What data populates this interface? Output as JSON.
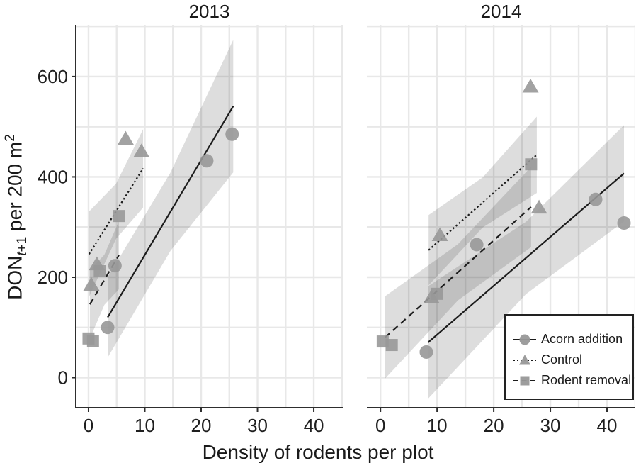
{
  "chart_data": {
    "type": "scatter",
    "xlabel": "Density of rodents per plot",
    "ylabel": {
      "prefix": "DON",
      "sub_italic": "t",
      "sub_rest": "+1",
      "mid": " per 200 m",
      "sup": "2"
    },
    "ylim": [
      -60,
      703
    ],
    "y_ticks": [
      0,
      200,
      400,
      600
    ],
    "x_ticks": [
      0,
      10,
      20,
      30,
      40
    ],
    "grid": {
      "x_step": 5,
      "x_max": 45,
      "y_step": 100,
      "y_max": 700,
      "color": "#e8e8e8"
    },
    "colors": {
      "marker": "#989898",
      "line": "#1c1c1c",
      "ribbon": "rgba(45,45,45,0.16)",
      "axis": "#2e2e2e",
      "text": "#1f1f1f"
    },
    "legend": {
      "position": "bottom-right-of-2014-panel",
      "items": [
        {
          "label": "Acorn addition",
          "marker": "circle",
          "linestyle": "solid"
        },
        {
          "label": "Control",
          "marker": "triangle",
          "linestyle": "dotted"
        },
        {
          "label": "Rodent removal",
          "marker": "square",
          "linestyle": "dashed"
        }
      ]
    },
    "facets": [
      {
        "title": "2013",
        "xlim": [
          -2.26,
          45.15
        ],
        "series": [
          {
            "name": "Acorn addition",
            "marker": "circle",
            "linestyle": "solid",
            "points": [
              [
                3.4,
                100
              ],
              [
                4.7,
                223
              ],
              [
                21,
                432
              ],
              [
                25.5,
                485
              ]
            ],
            "trend": {
              "x1": 3.4,
              "y1": 120,
              "x2": 25.7,
              "y2": 541
            },
            "ribbon_halfwidths": [
              80,
              78,
              132
            ]
          },
          {
            "name": "Control",
            "marker": "triangle",
            "linestyle": "dotted",
            "points": [
              [
                0.5,
                185
              ],
              [
                1.5,
                226
              ],
              [
                6.6,
                476
              ],
              [
                9.4,
                451
              ]
            ],
            "trend": {
              "x1": 0.1,
              "y1": 246,
              "x2": 9.7,
              "y2": 417
            },
            "ribbon_halfwidths": [
              85,
              55,
              78
            ]
          },
          {
            "name": "Rodent removal",
            "marker": "square",
            "linestyle": "dashed",
            "points": [
              [
                0,
                78
              ],
              [
                0.8,
                73
              ],
              [
                2,
                212
              ],
              [
                5.4,
                322
              ]
            ],
            "trend": {
              "x1": 0.25,
              "y1": 146,
              "x2": 5.4,
              "y2": 244
            },
            "ribbon_halfwidths": [
              68,
              50,
              68
            ]
          }
        ]
      },
      {
        "title": "2014",
        "xlim": [
          -2.4,
          45.0
        ],
        "series": [
          {
            "name": "Acorn addition",
            "marker": "circle",
            "linestyle": "solid",
            "points": [
              [
                8.1,
                51
              ],
              [
                17,
                265
              ],
              [
                38,
                355
              ],
              [
                43,
                308
              ]
            ],
            "trend": {
              "x1": 8.4,
              "y1": 70,
              "x2": 43,
              "y2": 407
            },
            "ribbon_halfwidths": [
              112,
              72,
              96
            ]
          },
          {
            "name": "Control",
            "marker": "triangle",
            "linestyle": "dotted",
            "points": [
              [
                9,
                160
              ],
              [
                10.5,
                284
              ],
              [
                26.5,
                580
              ],
              [
                28,
                339
              ]
            ],
            "trend": {
              "x1": 8.5,
              "y1": 254,
              "x2": 27.6,
              "y2": 444
            },
            "ribbon_halfwidths": [
              70,
              50,
              76
            ]
          },
          {
            "name": "Rodent removal",
            "marker": "square",
            "linestyle": "dashed",
            "points": [
              [
                0.4,
                72
              ],
              [
                2,
                65
              ],
              [
                10,
                167
              ],
              [
                26.6,
                425
              ]
            ],
            "trend": {
              "x1": 0.8,
              "y1": 80,
              "x2": 26.6,
              "y2": 340
            },
            "ribbon_halfwidths": [
              82,
              56,
              80
            ]
          }
        ]
      }
    ]
  }
}
